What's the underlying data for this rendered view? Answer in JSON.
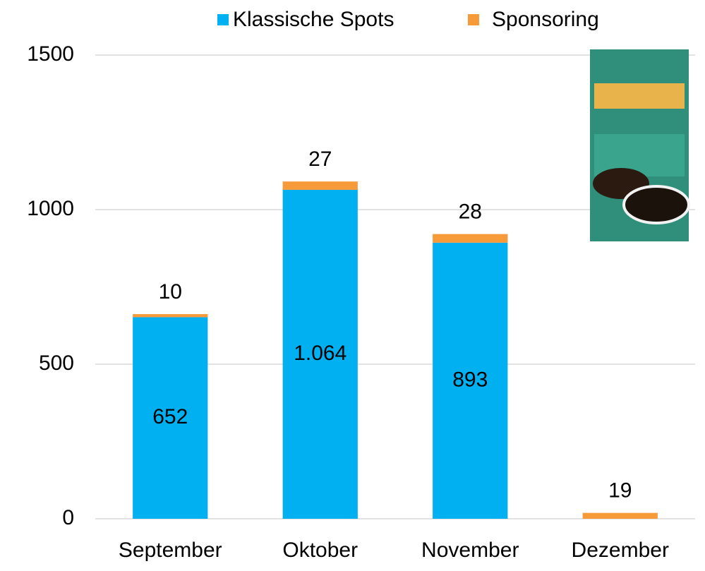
{
  "chart_data": {
    "type": "stacked-bar",
    "categories": [
      "September",
      "Oktober",
      "November",
      "Dezember"
    ],
    "series": [
      {
        "name": "Klassische Spots",
        "color": "#00b0f0",
        "values": [
          652,
          1064,
          893,
          null
        ],
        "value_labels": [
          "652",
          "1.064",
          "893",
          null
        ]
      },
      {
        "name": "Sponsoring",
        "color": "#f79a3a",
        "values": [
          10,
          27,
          28,
          19
        ]
      }
    ],
    "ylim": [
      0,
      1500
    ],
    "yticks": [
      0,
      500,
      1000,
      1500
    ],
    "grid": true,
    "legend": "top"
  }
}
